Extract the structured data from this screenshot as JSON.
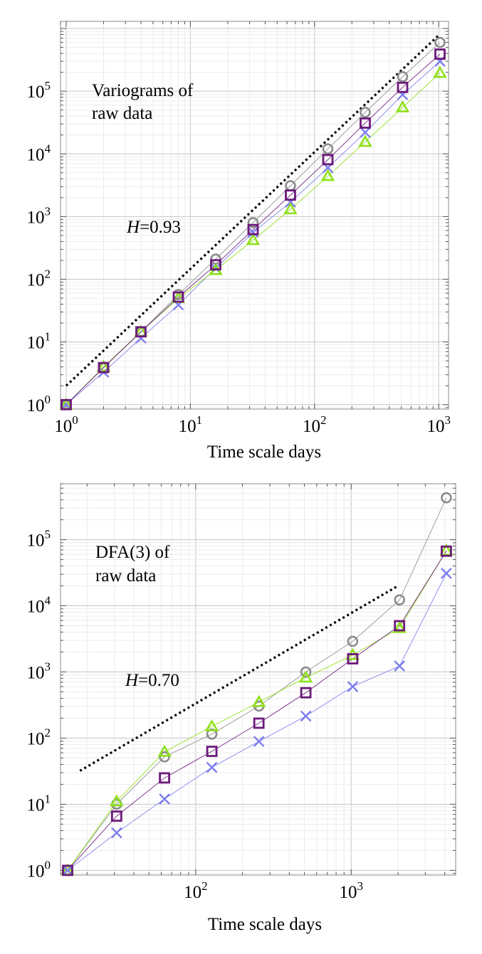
{
  "chart_data": [
    {
      "type": "line",
      "x_scale": "log",
      "y_scale": "log",
      "title": "",
      "annotation_lines": [
        "Variograms of",
        "raw data"
      ],
      "slope_label": {
        "italic": "H",
        "rest": "=0.93"
      },
      "xlabel": "Time scale  days",
      "ylabel": "",
      "xlim": [
        0.9,
        1200
      ],
      "ylim": [
        0.85,
        1300000
      ],
      "x_ticks": [
        {
          "value": 1,
          "base": "10",
          "exp": "0"
        },
        {
          "value": 10,
          "base": "10",
          "exp": "1"
        },
        {
          "value": 100,
          "base": "10",
          "exp": "2"
        },
        {
          "value": 1000,
          "base": "10",
          "exp": "3"
        }
      ],
      "y_ticks": [
        {
          "value": 1,
          "base": "10",
          "exp": "0"
        },
        {
          "value": 10,
          "base": "10",
          "exp": "1"
        },
        {
          "value": 100,
          "base": "10",
          "exp": "2"
        },
        {
          "value": 1000,
          "base": "10",
          "exp": "3"
        },
        {
          "value": 10000,
          "base": "10",
          "exp": "4"
        },
        {
          "value": 100000,
          "base": "10",
          "exp": "5"
        }
      ],
      "reference_line": {
        "style": "dotted",
        "color": "#000000",
        "points": [
          [
            1,
            2
          ],
          [
            1000,
            780000
          ]
        ]
      },
      "series": [
        {
          "name": "gray circles",
          "marker": "circle",
          "color": "#8c8c8c",
          "x": [
            1,
            2,
            4,
            8,
            16,
            32,
            64,
            128,
            256,
            512,
            1024
          ],
          "values": [
            1,
            3.9,
            14.5,
            57,
            210,
            800,
            3100,
            12000,
            46000,
            170000,
            600000
          ]
        },
        {
          "name": "purple squares",
          "marker": "square",
          "color": "#6b1a7a",
          "x": [
            1,
            2,
            4,
            8,
            16,
            32,
            64,
            128,
            256,
            512,
            1024
          ],
          "values": [
            1,
            3.9,
            14.5,
            52,
            170,
            620,
            2200,
            8100,
            31000,
            115000,
            390000
          ]
        },
        {
          "name": "blue crosses",
          "marker": "cross",
          "color": "#7d7def",
          "x": [
            1,
            2,
            4,
            8,
            16,
            32,
            64,
            128,
            256,
            512,
            1024
          ],
          "values": [
            1,
            3.3,
            11.5,
            39,
            150,
            560,
            1700,
            6000,
            22000,
            88000,
            300000
          ]
        },
        {
          "name": "green triangles",
          "marker": "triangle",
          "color": "#8fe01a",
          "x": [
            1,
            2,
            4,
            8,
            16,
            32,
            64,
            128,
            256,
            512,
            1024
          ],
          "values": [
            1,
            4.0,
            14.5,
            50,
            140,
            420,
            1300,
            4400,
            15500,
            55000,
            195000
          ]
        }
      ]
    },
    {
      "type": "line",
      "x_scale": "log",
      "y_scale": "log",
      "title": "",
      "annotation_lines": [
        "DFA(3) of",
        "raw data"
      ],
      "slope_label": {
        "italic": "H",
        "rest": "=0.70"
      },
      "xlabel": "Time scale  days",
      "ylabel": "",
      "xlim": [
        13.5,
        4700
      ],
      "ylim": [
        0.85,
        700000
      ],
      "x_ticks": [
        {
          "value": 100,
          "base": "10",
          "exp": "2"
        },
        {
          "value": 1000,
          "base": "10",
          "exp": "3"
        }
      ],
      "y_ticks": [
        {
          "value": 1,
          "base": "10",
          "exp": "0"
        },
        {
          "value": 10,
          "base": "10",
          "exp": "1"
        },
        {
          "value": 100,
          "base": "10",
          "exp": "2"
        },
        {
          "value": 1000,
          "base": "10",
          "exp": "3"
        },
        {
          "value": 10000,
          "base": "10",
          "exp": "4"
        },
        {
          "value": 100000,
          "base": "10",
          "exp": "5"
        }
      ],
      "reference_line": {
        "style": "dotted",
        "color": "#000000",
        "points": [
          [
            18,
            32
          ],
          [
            2000,
            20000
          ]
        ]
      },
      "series": [
        {
          "name": "gray circles",
          "marker": "circle",
          "color": "#8c8c8c",
          "x": [
            15,
            31,
            63,
            127,
            255,
            511,
            1023,
            2047,
            4095
          ],
          "values": [
            1,
            10,
            52,
            115,
            305,
            1000,
            2900,
            12300,
            430000
          ]
        },
        {
          "name": "purple squares",
          "marker": "square",
          "color": "#6b1a7a",
          "x": [
            15,
            31,
            63,
            127,
            255,
            511,
            1023,
            2047,
            4095
          ],
          "values": [
            1,
            6.6,
            25,
            63,
            168,
            485,
            1580,
            5000,
            67000
          ]
        },
        {
          "name": "blue crosses",
          "marker": "cross",
          "color": "#7d7def",
          "x": [
            15,
            31,
            63,
            127,
            255,
            511,
            1023,
            2047,
            4095
          ],
          "values": [
            1,
            3.7,
            12,
            36,
            89,
            215,
            600,
            1230,
            31000
          ]
        },
        {
          "name": "green triangles",
          "marker": "triangle",
          "color": "#8fe01a",
          "x": [
            15,
            31,
            63,
            127,
            255,
            511,
            1023,
            2047,
            4095
          ],
          "values": [
            1,
            11,
            62,
            150,
            350,
            820,
            1800,
            4600,
            68000
          ]
        }
      ]
    }
  ]
}
